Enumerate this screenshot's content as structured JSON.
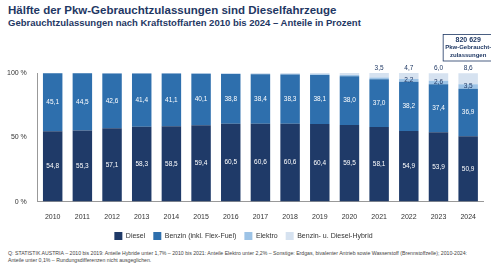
{
  "chart_data": {
    "type": "bar",
    "title": "Hälfte der Pkw-Gebrauchtzulassungen sind Dieselfahrzeuge",
    "subtitle": "Gebrauchtzulassungen nach Kraftstoffarten 2010 bis 2024 – Anteile in Prozent",
    "categories": [
      "2010",
      "2011",
      "2012",
      "2013",
      "2014",
      "2015",
      "2016",
      "2017",
      "2018",
      "2019",
      "2020",
      "2021",
      "2022",
      "2023",
      "2024"
    ],
    "series": [
      {
        "name": "Diesel",
        "color": "#1f3a68",
        "values": [
          54.8,
          55.3,
          57.1,
          58.3,
          58.5,
          59.4,
          60.5,
          60.6,
          60.6,
          60.4,
          59.5,
          58.1,
          54.9,
          53.9,
          50.9
        ],
        "value_labels": [
          "54,8",
          "55,3",
          "57,1",
          "58,3",
          "58,5",
          "59,4",
          "60,5",
          "60,6",
          "60,6",
          "60,4",
          "59,5",
          "58,1",
          "54,9",
          "53,9",
          "50,9"
        ]
      },
      {
        "name": "Benzin (inkl. Flex-Fuel)",
        "color": "#2e6fad",
        "values": [
          45.1,
          44.5,
          42.6,
          41.4,
          41.1,
          40.1,
          38.8,
          38.4,
          38.3,
          38.1,
          38.0,
          37.0,
          38.2,
          37.4,
          36.9
        ],
        "value_labels": [
          "45,1",
          "44,5",
          "42,6",
          "41,4",
          "41,1",
          "40,1",
          "38,8",
          "38,4",
          "38,3",
          "38,1",
          "38,0",
          "37,0",
          "38,2",
          "37,4",
          "36,9"
        ]
      },
      {
        "name": "Elektro",
        "color": "#9dc3e6",
        "values": [
          0.0,
          0.0,
          0.0,
          0.0,
          0.0,
          0.1,
          0.2,
          0.3,
          0.4,
          0.5,
          0.9,
          1.4,
          2.2,
          2.6,
          3.5
        ],
        "value_labels": [
          null,
          null,
          null,
          null,
          null,
          null,
          null,
          null,
          null,
          null,
          null,
          null,
          "2,2",
          "2,6",
          "3,5"
        ]
      },
      {
        "name": "Benzin- u. Diesel-Hybrid",
        "color": "#d6e2f0",
        "values": [
          0.1,
          0.2,
          0.3,
          0.3,
          0.4,
          0.4,
          0.5,
          0.7,
          0.7,
          1.0,
          1.6,
          3.5,
          4.7,
          6.0,
          8.6
        ],
        "value_labels": [
          null,
          null,
          null,
          null,
          null,
          null,
          null,
          null,
          null,
          null,
          null,
          "3,5",
          "4,7",
          "6,0",
          "8,6"
        ]
      }
    ],
    "ylim": [
      0,
      100
    ],
    "yticks": [
      {
        "value": 0,
        "label": "0 %"
      },
      {
        "value": 50,
        "label": "50 %"
      },
      {
        "value": 100,
        "label": "100 %"
      }
    ],
    "stacked": true,
    "grid": false,
    "legend": "bottom",
    "data_labels": true,
    "annotation": {
      "category": "2024",
      "lines": [
        "820 629",
        "Pkw-Gebraucht-",
        "zulassungen"
      ]
    },
    "footnote": "Q: STATISTIK AUSTRIA – 2010 bis 2019: Anteile Hybride unter 1,7% – 2010 bis 2021: Anteile Elektro unter 2,2% – Sonstige: Erdgas, bivalenter Antrieb sowie Wasserstoff (Brennstoffzelle); 2010-2024: Anteile unter 0,1% – Rundungsdifferenzen nicht ausgeglichen."
  }
}
